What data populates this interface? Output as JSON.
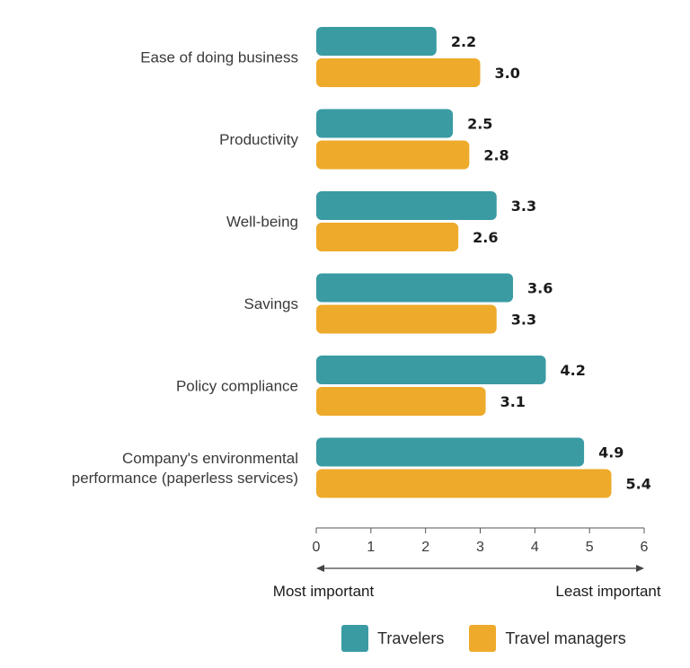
{
  "chart_data": {
    "type": "bar",
    "orientation": "horizontal",
    "categories": [
      "Ease of doing business",
      "Productivity",
      "Well-being",
      "Savings",
      "Policy compliance",
      "Company's environmental performance (paperless services)"
    ],
    "category_lines": [
      [
        "Ease of doing business"
      ],
      [
        "Productivity"
      ],
      [
        "Well-being"
      ],
      [
        "Savings"
      ],
      [
        "Policy compliance"
      ],
      [
        "Company's environmental",
        "performance (paperless services)"
      ]
    ],
    "series": [
      {
        "name": "Travelers",
        "color": "#3a9ba3",
        "values": [
          2.2,
          2.5,
          3.3,
          3.6,
          4.2,
          4.9
        ]
      },
      {
        "name": "Travel managers",
        "color": "#eeaa2a",
        "values": [
          3.0,
          2.8,
          2.6,
          3.3,
          3.1,
          5.4
        ]
      }
    ],
    "value_labels": [
      [
        "2.2",
        "2.5",
        "3.3",
        "3.6",
        "4.2",
        "4.9"
      ],
      [
        "3.0",
        "2.8",
        "2.6",
        "3.3",
        "3.1",
        "5.4"
      ]
    ],
    "xlim": [
      0,
      6
    ],
    "xticks": [
      "0",
      "1",
      "2",
      "3",
      "4",
      "5",
      "6"
    ],
    "axis_left_label": "Most important",
    "axis_right_label": "Least important",
    "legend_position": "bottom",
    "grid": false
  }
}
